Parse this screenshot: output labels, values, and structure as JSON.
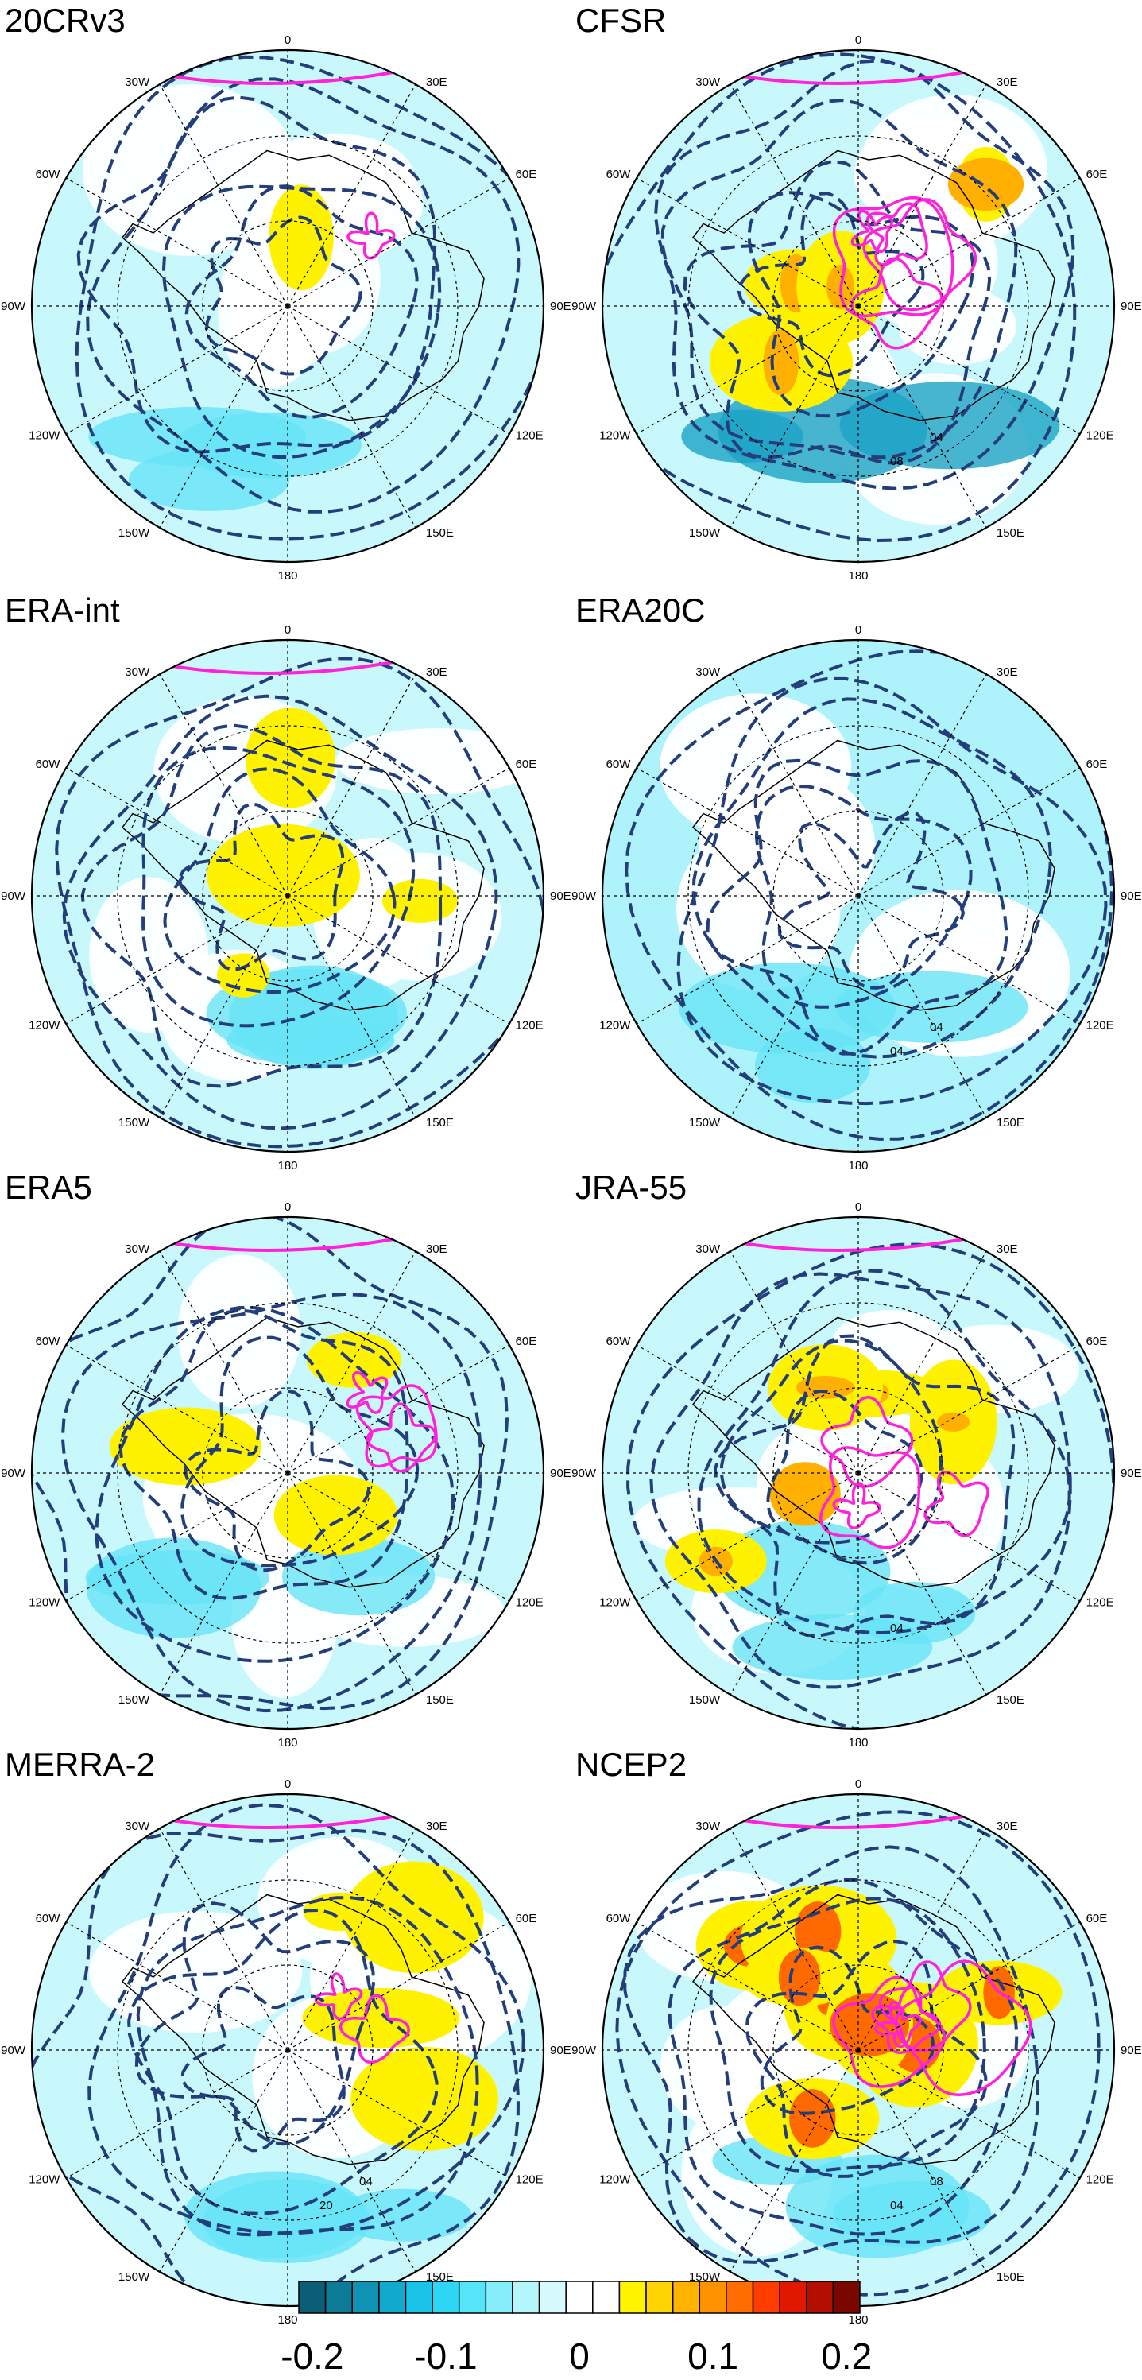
{
  "panels": [
    {
      "title": "20CRv3",
      "contour_labels": []
    },
    {
      "title": "CFSR",
      "contour_labels": [
        "08",
        "04"
      ]
    },
    {
      "title": "ERA-int",
      "contour_labels": []
    },
    {
      "title": "ERA20C",
      "contour_labels": [
        "04",
        "04"
      ]
    },
    {
      "title": "ERA5",
      "contour_labels": []
    },
    {
      "title": "JRA-55",
      "contour_labels": [
        "04"
      ]
    },
    {
      "title": "MERRA-2",
      "contour_labels": [
        "20",
        "04"
      ]
    },
    {
      "title": "NCEP2",
      "contour_labels": [
        "04",
        "08"
      ]
    }
  ],
  "map_labels": {
    "top": "0",
    "bottom": "180",
    "left": "90W",
    "right": "90E",
    "upper_left_outer": "60W",
    "upper_left_inner": "30W",
    "upper_right_inner": "30E",
    "upper_right_outer": "60E",
    "lower_left_outer": "120W",
    "lower_left_inner": "150W",
    "lower_right_inner": "150E",
    "lower_right_outer": "120E"
  },
  "colorbar": {
    "tick_labels": [
      "-0.2",
      "-0.1",
      "0",
      "0.1",
      "0.2"
    ],
    "colors": [
      "#0b5e78",
      "#0d7a96",
      "#0f92b4",
      "#12a9cf",
      "#19c2e6",
      "#2cd6f4",
      "#55e4f8",
      "#86eefa",
      "#b3f6fc",
      "#d7fbfd",
      "#ffffff",
      "#ffffff",
      "#fff500",
      "#ffd400",
      "#ffb300",
      "#ff9200",
      "#ff6c00",
      "#ff3c00",
      "#e01800",
      "#b30f00",
      "#7a0600"
    ]
  },
  "styles": {
    "positive_contour_color": "#ff22dd",
    "negative_contour_color": "#233e7a"
  }
}
